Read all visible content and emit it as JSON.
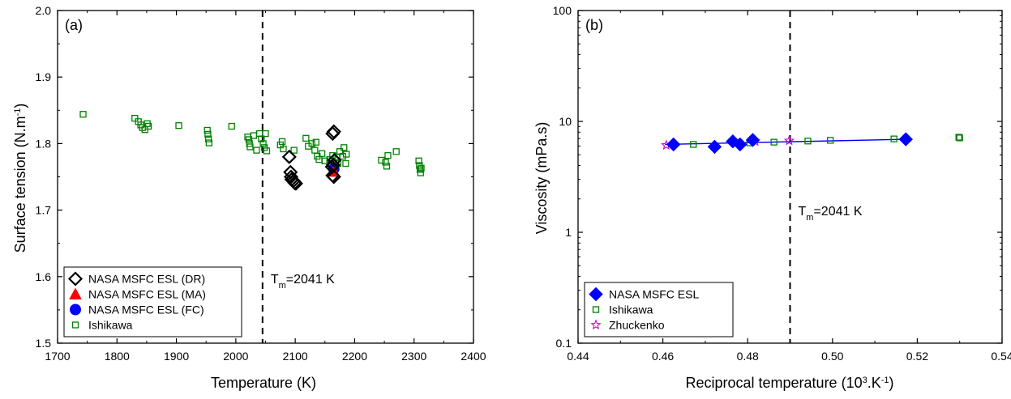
{
  "chart_data": [
    {
      "type": "scatter",
      "panel_label": "(a)",
      "xlabel": "Temperature (K)",
      "ylabel_main": "Surface tension (N.m",
      "ylabel_sup": "-1",
      "ylabel_tail": ")",
      "xlim": [
        1700,
        2400
      ],
      "ylim": [
        1.5,
        2.0
      ],
      "x_ticks": [
        1700,
        1800,
        1900,
        2000,
        2100,
        2200,
        2300,
        2400
      ],
      "y_ticks": [
        1.5,
        1.6,
        1.7,
        1.8,
        1.9,
        2.0
      ],
      "y_tick_labels": [
        "1.5",
        "1.6",
        "1.7",
        "1.8",
        "1.9",
        "2.0"
      ],
      "melting_line": {
        "x": 2045,
        "label_main": "T",
        "label_sub": "m",
        "label_tail": "=2041 K"
      },
      "legend_position": "bottom-left",
      "series": [
        {
          "name": "NASA MSFC ESL (DR)",
          "marker": "diamond-open",
          "color": "#000000",
          "points": [
            [
              2090,
              1.78
            ],
            [
              2092,
              1.757
            ],
            [
              2093,
              1.75
            ],
            [
              2094,
              1.746
            ],
            [
              2097,
              1.744
            ],
            [
              2099,
              1.741
            ],
            [
              2101,
              1.74
            ],
            [
              2163,
              1.815
            ],
            [
              2165,
              1.818
            ],
            [
              2166,
              1.775
            ],
            [
              2164,
              1.768
            ],
            [
              2162,
              1.765
            ],
            [
              2163,
              1.752
            ],
            [
              2165,
              1.75
            ]
          ]
        },
        {
          "name": "NASA MSFC ESL (MA)",
          "marker": "triangle",
          "color": "#ff0000",
          "points": [
            [
              2165,
              1.758
            ]
          ]
        },
        {
          "name": "NASA MSFC ESL (FC)",
          "marker": "circle",
          "color": "#0000ff",
          "points": [
            [
              2165,
              1.762
            ]
          ]
        },
        {
          "name": "Ishikawa",
          "marker": "square-open",
          "color": "#008000",
          "points": [
            [
              1743,
              1.844
            ],
            [
              1830,
              1.838
            ],
            [
              1836,
              1.833
            ],
            [
              1840,
              1.828
            ],
            [
              1843,
              1.824
            ],
            [
              1847,
              1.821
            ],
            [
              1851,
              1.83
            ],
            [
              1853,
              1.826
            ],
            [
              1904,
              1.827
            ],
            [
              1952,
              1.82
            ],
            [
              1953,
              1.814
            ],
            [
              1954,
              1.807
            ],
            [
              1955,
              1.801
            ],
            [
              1993,
              1.826
            ],
            [
              2020,
              1.81
            ],
            [
              2022,
              1.806
            ],
            [
              2023,
              1.8
            ],
            [
              2024,
              1.795
            ],
            [
              2030,
              1.812
            ],
            [
              2035,
              1.79
            ],
            [
              2040,
              1.815
            ],
            [
              2043,
              1.807
            ],
            [
              2046,
              1.8
            ],
            [
              2048,
              1.794
            ],
            [
              2050,
              1.815
            ],
            [
              2052,
              1.789
            ],
            [
              2075,
              1.798
            ],
            [
              2078,
              1.803
            ],
            [
              2080,
              1.792
            ],
            [
              2098,
              1.79
            ],
            [
              2118,
              1.808
            ],
            [
              2122,
              1.796
            ],
            [
              2128,
              1.8
            ],
            [
              2133,
              1.79
            ],
            [
              2135,
              1.802
            ],
            [
              2137,
              1.781
            ],
            [
              2140,
              1.776
            ],
            [
              2145,
              1.785
            ],
            [
              2150,
              1.774
            ],
            [
              2158,
              1.776
            ],
            [
              2160,
              1.77
            ],
            [
              2163,
              1.782
            ],
            [
              2165,
              1.765
            ],
            [
              2170,
              1.78
            ],
            [
              2172,
              1.77
            ],
            [
              2175,
              1.788
            ],
            [
              2180,
              1.781
            ],
            [
              2182,
              1.794
            ],
            [
              2185,
              1.77
            ],
            [
              2186,
              1.784
            ],
            [
              2245,
              1.775
            ],
            [
              2252,
              1.772
            ],
            [
              2254,
              1.766
            ],
            [
              2256,
              1.782
            ],
            [
              2270,
              1.788
            ],
            [
              2308,
              1.774
            ],
            [
              2309,
              1.767
            ],
            [
              2310,
              1.761
            ],
            [
              2311,
              1.756
            ],
            [
              2312,
              1.763
            ]
          ]
        }
      ]
    },
    {
      "type": "scatter",
      "panel_label": "(b)",
      "xlabel_main": "Reciprocal temperature (10",
      "xlabel_sup": "3",
      "xlabel_mid": ".K",
      "xlabel_sup2": "-1",
      "xlabel_tail": ")",
      "ylabel": "Viscosity (mPa.s)",
      "xlim": [
        0.44,
        0.54
      ],
      "ylim": [
        0.1,
        100
      ],
      "y_scale": "log",
      "x_ticks": [
        0.44,
        0.46,
        0.48,
        0.5,
        0.52,
        0.54
      ],
      "x_tick_labels": [
        "0.44",
        "0.46",
        "0.48",
        "0.50",
        "0.52",
        "0.54"
      ],
      "y_ticks": [
        0.1,
        1,
        10,
        100
      ],
      "y_tick_labels": [
        "0.1",
        "1",
        "10",
        "100"
      ],
      "melting_line": {
        "x": 0.49,
        "label_main": "T",
        "label_sub": "m",
        "label_tail": "=2041 K"
      },
      "legend_position": "bottom-left",
      "fit_line": {
        "color": "#0000ff",
        "x": [
          0.4605,
          0.5175
        ],
        "y": [
          6.2,
          6.9
        ]
      },
      "series": [
        {
          "name": "NASA MSFC ESL",
          "marker": "diamond",
          "color": "#0000ff",
          "points": [
            [
              0.4625,
              6.2
            ],
            [
              0.4722,
              5.9
            ],
            [
              0.4765,
              6.6
            ],
            [
              0.4782,
              6.2
            ],
            [
              0.4812,
              6.8
            ],
            [
              0.5173,
              6.9
            ]
          ]
        },
        {
          "name": "Ishikawa",
          "marker": "square-open",
          "color": "#008000",
          "points": [
            [
              0.4672,
              6.2
            ],
            [
              0.4805,
              6.4
            ],
            [
              0.4862,
              6.5
            ],
            [
              0.4942,
              6.65
            ],
            [
              0.4995,
              6.75
            ],
            [
              0.5145,
              6.95
            ],
            [
              0.5298,
              7.2
            ],
            [
              0.53,
              7.1
            ]
          ]
        },
        {
          "name": "Zhuckenko",
          "marker": "star-open",
          "color": "#cc00cc",
          "points": [
            [
              0.4608,
              6.1
            ],
            [
              0.4818,
              6.6
            ],
            [
              0.4898,
              6.7
            ]
          ]
        }
      ]
    }
  ]
}
